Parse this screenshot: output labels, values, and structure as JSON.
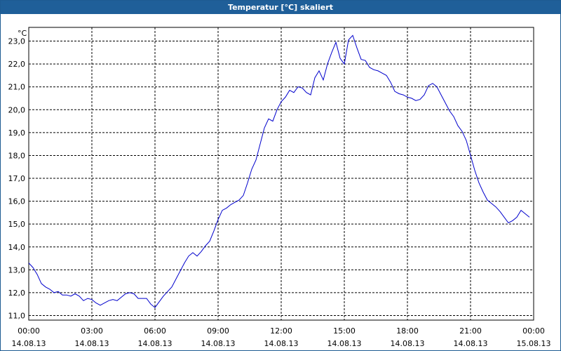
{
  "window": {
    "title": "Temperatur [°C] skaliert"
  },
  "chart_data": {
    "type": "line",
    "title": "Temperatur [°C] skaliert",
    "ylabel": "°C",
    "xlabel": "",
    "ylim": [
      10.8,
      23.6
    ],
    "xlim": [
      0,
      24
    ],
    "grid": true,
    "line_color": "#0000cc",
    "y_ticks": [
      "11,0",
      "12,0",
      "13,0",
      "14,0",
      "15,0",
      "16,0",
      "17,0",
      "18,0",
      "19,0",
      "20,0",
      "21,0",
      "22,0",
      "23,0"
    ],
    "x_ticks": [
      {
        "time": "00:00",
        "date": "14.08.13"
      },
      {
        "time": "03:00",
        "date": "14.08.13"
      },
      {
        "time": "06:00",
        "date": "14.08.13"
      },
      {
        "time": "09:00",
        "date": "14.08.13"
      },
      {
        "time": "12:00",
        "date": "14.08.13"
      },
      {
        "time": "15:00",
        "date": "14.08.13"
      },
      {
        "time": "18:00",
        "date": "14.08.13"
      },
      {
        "time": "21:00",
        "date": "14.08.13"
      },
      {
        "time": "00:00",
        "date": "15.08.13"
      }
    ],
    "series": [
      {
        "x": [
          0.0,
          0.2,
          0.4,
          0.6,
          0.8,
          1.0,
          1.2,
          1.4,
          1.6,
          1.8,
          2.0,
          2.2,
          2.4,
          2.6,
          2.8,
          3.0,
          3.2,
          3.4,
          3.6,
          3.8,
          4.0,
          4.2,
          4.4,
          4.6,
          4.8,
          5.0,
          5.2,
          5.4,
          5.6,
          5.8,
          6.0,
          6.2,
          6.4,
          6.6,
          6.8,
          7.0,
          7.2,
          7.4,
          7.6,
          7.8,
          8.0,
          8.2,
          8.4,
          8.6,
          8.8,
          9.0,
          9.2,
          9.4,
          9.6,
          9.8,
          10.0,
          10.2,
          10.4,
          10.6,
          10.8,
          11.0,
          11.2,
          11.4,
          11.6,
          11.8,
          12.0,
          12.2,
          12.4,
          12.6,
          12.8,
          13.0,
          13.2,
          13.4,
          13.6,
          13.8,
          14.0,
          14.2,
          14.4,
          14.6,
          14.8,
          15.0,
          15.2,
          15.4,
          15.6,
          15.8,
          16.0,
          16.2,
          16.4,
          16.6,
          16.8,
          17.0,
          17.2,
          17.4,
          17.6,
          17.8,
          18.0,
          18.2,
          18.4,
          18.6,
          18.8,
          19.0,
          19.2,
          19.4,
          19.6,
          19.8,
          20.0,
          20.2,
          20.4,
          20.6,
          20.8,
          21.0,
          21.2,
          21.4,
          21.6,
          21.8,
          22.0,
          22.2,
          22.4,
          22.6,
          22.8,
          23.0,
          23.2,
          23.4,
          23.6,
          23.8
        ],
        "values": [
          13.3,
          13.1,
          12.8,
          12.4,
          12.25,
          12.15,
          12.0,
          12.05,
          11.9,
          11.9,
          11.85,
          11.95,
          11.85,
          11.65,
          11.75,
          11.7,
          11.55,
          11.45,
          11.55,
          11.65,
          11.7,
          11.65,
          11.8,
          11.95,
          12.0,
          11.95,
          11.75,
          11.75,
          11.75,
          11.5,
          11.35,
          11.6,
          11.85,
          12.05,
          12.25,
          12.6,
          12.95,
          13.3,
          13.6,
          13.75,
          13.6,
          13.8,
          14.05,
          14.25,
          14.7,
          15.2,
          15.6,
          15.7,
          15.85,
          15.95,
          16.05,
          16.25,
          16.8,
          17.4,
          17.8,
          18.5,
          19.2,
          19.6,
          19.5,
          20.0,
          20.35,
          20.55,
          20.85,
          20.75,
          21.0,
          20.95,
          20.75,
          20.65,
          21.4,
          21.7,
          21.3,
          22.0,
          22.5,
          22.95,
          22.25,
          22.0,
          23.05,
          23.25,
          22.7,
          22.2,
          22.15,
          21.85,
          21.75,
          21.7,
          21.6,
          21.5,
          21.2,
          20.8,
          20.7,
          20.65,
          20.55,
          20.5,
          20.4,
          20.45,
          20.65,
          21.05,
          21.15,
          21.0,
          20.65,
          20.3,
          19.95,
          19.7,
          19.3,
          19.05,
          18.65,
          18.0,
          17.35,
          16.8,
          16.4,
          16.05,
          15.9,
          15.75,
          15.55,
          15.3,
          15.05,
          15.15,
          15.3,
          15.6,
          15.45,
          15.3
        ]
      }
    ]
  }
}
